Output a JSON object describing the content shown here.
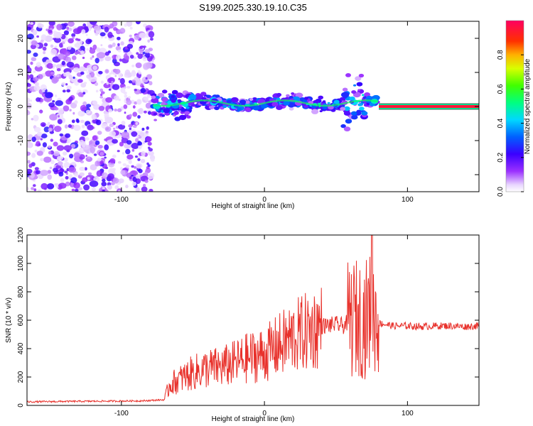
{
  "figure_title": "S199.2025.330.19.10.C35",
  "chart_data": [
    {
      "type": "heatmap",
      "xlabel": "Height of straight line (km)",
      "ylabel": "Frequency (Hz)",
      "xlim": [
        -166,
        150
      ],
      "ylim": [
        -25,
        25
      ],
      "xticks": [
        -100,
        0,
        100
      ],
      "yticks": [
        -20,
        -10,
        0,
        10,
        20
      ],
      "colorbar": {
        "label": "Normalized spectral amplitude",
        "range": [
          0,
          1
        ],
        "ticks": [
          0.0,
          0.2,
          0.4,
          0.6,
          0.8
        ],
        "colormap": "rainbow (white-magenta-blue-cyan-green-yellow-red)"
      },
      "regions": [
        {
          "x": [
            -166,
            -78
          ],
          "description": "scattered low-amplitude noise across all frequencies",
          "amplitude": 0.1
        },
        {
          "x": [
            -78,
            80
          ],
          "freq_center": 1,
          "freq_spread": 3,
          "amplitude": 0.5
        },
        {
          "x": [
            80,
            150
          ],
          "freq_center": 0,
          "amplitude": 0.95
        }
      ]
    },
    {
      "type": "line",
      "xlabel": "Height of straight line (km)",
      "ylabel": "SNR (10 * v/v)",
      "xlim": [
        -166,
        150
      ],
      "ylim": [
        0,
        1200
      ],
      "xticks": [
        -100,
        0,
        100
      ],
      "yticks": [
        0,
        200,
        400,
        600,
        800,
        1000,
        1200
      ],
      "color": "#e8312b",
      "series": [
        {
          "x": [
            -166,
            -140,
            -110,
            -85,
            -70,
            -66,
            -60,
            -50,
            -40,
            -30,
            -20,
            -10,
            0,
            10,
            20,
            30,
            40,
            50,
            55,
            60,
            65,
            70,
            75,
            80,
            90,
            100,
            110,
            120,
            130,
            140,
            150
          ],
          "values": [
            25,
            28,
            30,
            32,
            40,
            150,
            180,
            230,
            260,
            270,
            300,
            340,
            360,
            420,
            480,
            520,
            560,
            570,
            560,
            600,
            620,
            600,
            680,
            580,
            560,
            560,
            555,
            560,
            560,
            555,
            560
          ]
        }
      ],
      "annotations": [
        {
          "x": 75,
          "y": 1200,
          "note": "spike"
        }
      ]
    }
  ]
}
